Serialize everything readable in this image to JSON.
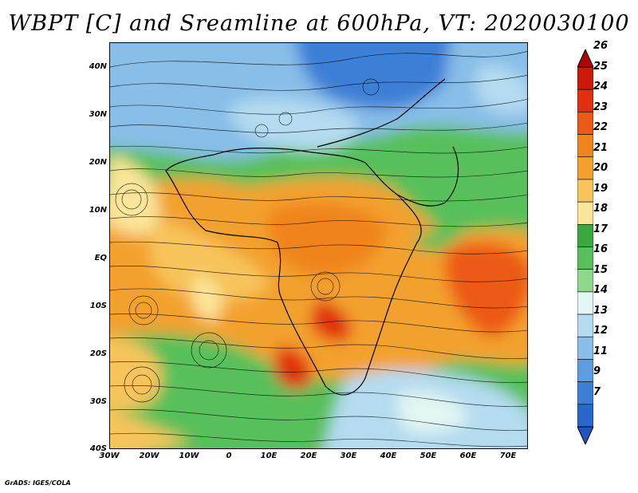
{
  "title": "WBPT [C] and Sreamline at 600hPa, VT: 2020030100",
  "footer": "GrADS: IGES/COLA",
  "lat_labels": [
    "40N",
    "30N",
    "20N",
    "10N",
    "EQ",
    "10S",
    "20S",
    "30S",
    "40S"
  ],
  "lon_labels": [
    "30W",
    "20W",
    "10W",
    "0",
    "10E",
    "20E",
    "30E",
    "40E",
    "50E",
    "60E",
    "70E"
  ],
  "colorbar": {
    "labels": [
      "26",
      "25",
      "24",
      "23",
      "22",
      "21",
      "20",
      "19",
      "18",
      "17",
      "16",
      "15",
      "14",
      "13",
      "12",
      "11",
      "9",
      "7"
    ],
    "colors": [
      "#b00000",
      "#cc1a0a",
      "#e03010",
      "#ec5a18",
      "#f0841e",
      "#f3a12d",
      "#f7c45c",
      "#fbe59a",
      "#3aa83e",
      "#58c05a",
      "#8ed88c",
      "#e2f6f2",
      "#b4dbf0",
      "#88bee8",
      "#5e9ddf",
      "#3e7fd6",
      "#2a66cc",
      "#1e56c4"
    ]
  }
}
